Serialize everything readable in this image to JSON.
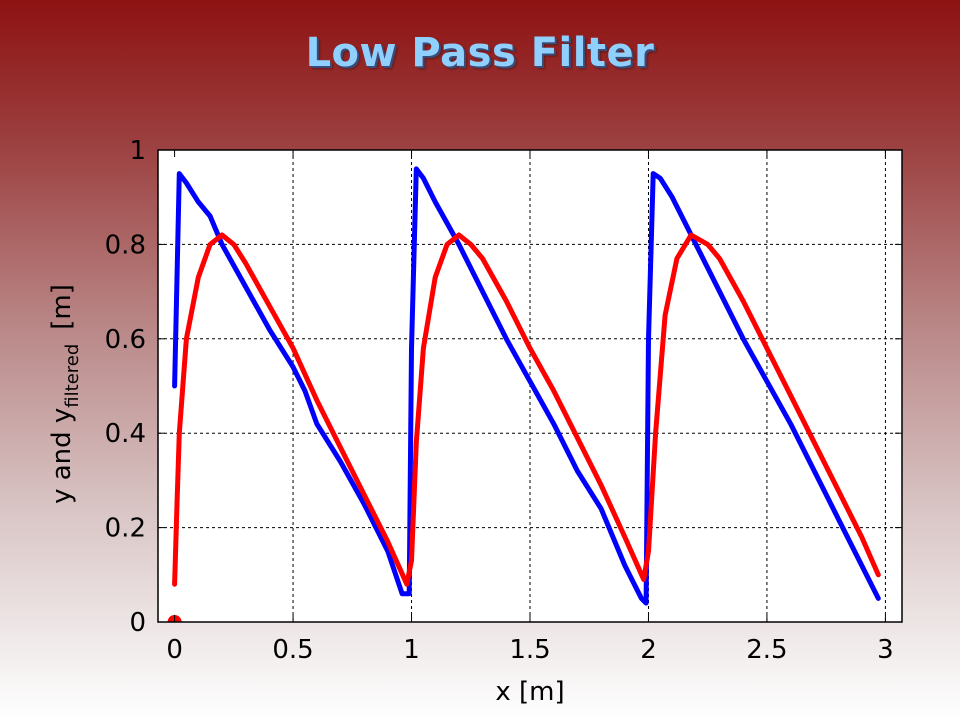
{
  "title": "Low Pass Filter",
  "colors": {
    "title": "#8fd0ff",
    "series_y": "#0000ff",
    "series_filtered": "#ff0000"
  },
  "chart_data": {
    "type": "line",
    "xlabel": "x  [m]",
    "ylabel": {
      "main": "y and y",
      "subscript": "filtered",
      "unit": "[m]"
    },
    "xlim": [
      -0.07,
      3.07
    ],
    "ylim": [
      0,
      1
    ],
    "xticks": [
      0,
      0.5,
      1,
      1.5,
      2,
      2.5,
      3
    ],
    "xtick_labels": [
      "0",
      "0.5",
      "1",
      "1.5",
      "2",
      "2.5",
      "3"
    ],
    "yticks": [
      0,
      0.2,
      0.4,
      0.6,
      0.8,
      1
    ],
    "ytick_labels": [
      "0",
      "0.2",
      "0.4",
      "0.6",
      "0.8",
      "1"
    ],
    "grid": true,
    "series": [
      {
        "color": "#0000ff",
        "x": [
          0,
          0.02,
          0.05,
          0.1,
          0.15,
          0.2,
          0.3,
          0.4,
          0.5,
          0.55,
          0.6,
          0.7,
          0.8,
          0.9,
          0.96,
          0.99,
          1.0,
          1.02,
          1.05,
          1.1,
          1.2,
          1.3,
          1.4,
          1.5,
          1.6,
          1.7,
          1.8,
          1.9,
          1.97,
          1.99,
          2.0,
          2.02,
          2.05,
          2.1,
          2.2,
          2.3,
          2.4,
          2.5,
          2.6,
          2.7,
          2.8,
          2.9,
          2.97
        ],
        "values": [
          0.5,
          0.95,
          0.93,
          0.89,
          0.86,
          0.8,
          0.71,
          0.62,
          0.54,
          0.49,
          0.42,
          0.34,
          0.25,
          0.15,
          0.06,
          0.06,
          0.58,
          0.96,
          0.94,
          0.89,
          0.8,
          0.7,
          0.6,
          0.51,
          0.42,
          0.32,
          0.24,
          0.12,
          0.05,
          0.04,
          0.6,
          0.95,
          0.94,
          0.9,
          0.8,
          0.7,
          0.6,
          0.51,
          0.42,
          0.32,
          0.22,
          0.12,
          0.05
        ]
      },
      {
        "color": "#ff0000",
        "x": [
          0,
          0.01,
          0.02,
          0.05,
          0.1,
          0.15,
          0.2,
          0.25,
          0.3,
          0.4,
          0.5,
          0.6,
          0.7,
          0.8,
          0.9,
          0.98,
          1.0,
          1.02,
          1.05,
          1.1,
          1.15,
          1.2,
          1.25,
          1.3,
          1.4,
          1.5,
          1.6,
          1.7,
          1.8,
          1.9,
          1.98,
          2.0,
          2.03,
          2.07,
          2.12,
          2.18,
          2.25,
          2.3,
          2.4,
          2.5,
          2.6,
          2.7,
          2.8,
          2.9,
          2.97
        ],
        "values": [
          0.08,
          0.25,
          0.4,
          0.6,
          0.73,
          0.8,
          0.82,
          0.8,
          0.76,
          0.67,
          0.58,
          0.47,
          0.37,
          0.27,
          0.17,
          0.08,
          0.13,
          0.38,
          0.58,
          0.73,
          0.8,
          0.82,
          0.8,
          0.77,
          0.68,
          0.58,
          0.49,
          0.39,
          0.29,
          0.18,
          0.09,
          0.15,
          0.4,
          0.65,
          0.77,
          0.82,
          0.8,
          0.77,
          0.68,
          0.58,
          0.48,
          0.38,
          0.28,
          0.18,
          0.1
        ]
      }
    ],
    "annotations": [
      {
        "x": 0,
        "y": 0,
        "marker": "triangle",
        "color": "#ff0000"
      }
    ]
  }
}
